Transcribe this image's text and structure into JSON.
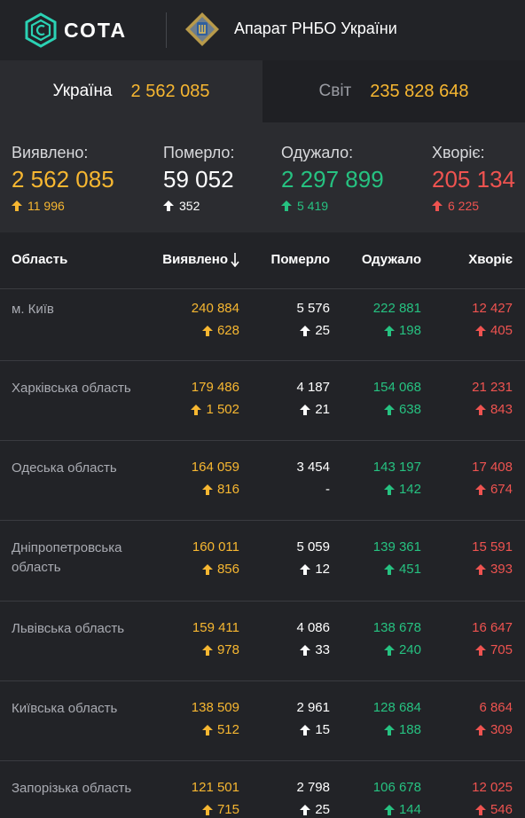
{
  "header": {
    "logo_text": "СОТА",
    "org_name": "Апарат РНБО України"
  },
  "tabs": [
    {
      "label": "Україна",
      "value": "2 562 085",
      "active": true
    },
    {
      "label": "Світ",
      "value": "235 828 648",
      "active": false
    }
  ],
  "summary": {
    "detected": {
      "label": "Виявлено:",
      "value": "2 562 085",
      "delta": "11 996"
    },
    "died": {
      "label": "Померло:",
      "value": "59 052",
      "delta": "352"
    },
    "recovered": {
      "label": "Одужало:",
      "value": "2 297 899",
      "delta": "5 419"
    },
    "sick": {
      "label": "Хворіє:",
      "value": "205 134",
      "delta": "6 225"
    }
  },
  "table": {
    "headers": {
      "region": "Область",
      "detected": "Виявлено",
      "died": "Померло",
      "recovered": "Одужало",
      "sick": "Хворіє"
    },
    "rows": [
      {
        "region": "м. Київ",
        "detected": "240 884",
        "detected_d": "628",
        "died": "5 576",
        "died_d": "25",
        "recovered": "222 881",
        "recovered_d": "198",
        "sick": "12 427",
        "sick_d": "405"
      },
      {
        "region": "Харківська область",
        "detected": "179 486",
        "detected_d": "1 502",
        "died": "4 187",
        "died_d": "21",
        "recovered": "154 068",
        "recovered_d": "638",
        "sick": "21 231",
        "sick_d": "843"
      },
      {
        "region": "Одеська область",
        "detected": "164 059",
        "detected_d": "816",
        "died": "3 454",
        "died_d": "-",
        "recovered": "143 197",
        "recovered_d": "142",
        "sick": "17 408",
        "sick_d": "674"
      },
      {
        "region": "Дніпропетровська область",
        "detected": "160 011",
        "detected_d": "856",
        "died": "5 059",
        "died_d": "12",
        "recovered": "139 361",
        "recovered_d": "451",
        "sick": "15 591",
        "sick_d": "393"
      },
      {
        "region": "Львівська область",
        "detected": "159 411",
        "detected_d": "978",
        "died": "4 086",
        "died_d": "33",
        "recovered": "138 678",
        "recovered_d": "240",
        "sick": "16 647",
        "sick_d": "705"
      },
      {
        "region": "Київська область",
        "detected": "138 509",
        "detected_d": "512",
        "died": "2 961",
        "died_d": "15",
        "recovered": "128 684",
        "recovered_d": "188",
        "sick": "6 864",
        "sick_d": "309"
      },
      {
        "region": "Запорізька область",
        "detected": "121 501",
        "detected_d": "715",
        "died": "2 798",
        "died_d": "25",
        "recovered": "106 678",
        "recovered_d": "144",
        "sick": "12 025",
        "sick_d": "546"
      }
    ]
  },
  "colors": {
    "detected": "#f7b731",
    "died": "#ffffff",
    "recovered": "#26c281",
    "sick": "#ef5350"
  },
  "icons": {
    "delta": "arrow-up-icon",
    "sort": "arrow-down-icon"
  }
}
